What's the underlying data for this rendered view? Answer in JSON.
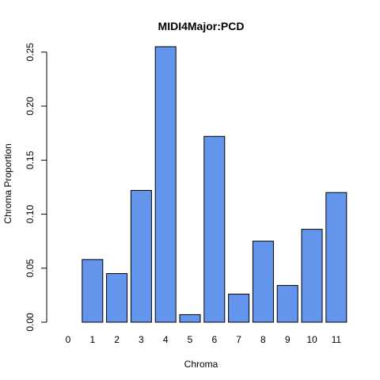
{
  "chart_data": {
    "type": "bar",
    "title": "MIDI4Major:PCD",
    "xlabel": "Chroma",
    "ylabel": "Chroma Proportion",
    "categories": [
      "0",
      "1",
      "2",
      "3",
      "4",
      "5",
      "6",
      "7",
      "8",
      "9",
      "10",
      "11"
    ],
    "values": [
      0.0,
      0.058,
      0.045,
      0.122,
      0.255,
      0.007,
      0.172,
      0.026,
      0.075,
      0.034,
      0.086,
      0.12
    ],
    "ylim": [
      0,
      0.255
    ],
    "yticks": [
      0.0,
      0.05,
      0.1,
      0.15,
      0.2,
      0.25
    ],
    "ytick_labels": [
      "0.00",
      "0.05",
      "0.10",
      "0.15",
      "0.20",
      "0.25"
    ],
    "bar_color": "#6495ed",
    "grid": false,
    "legend": "none"
  }
}
